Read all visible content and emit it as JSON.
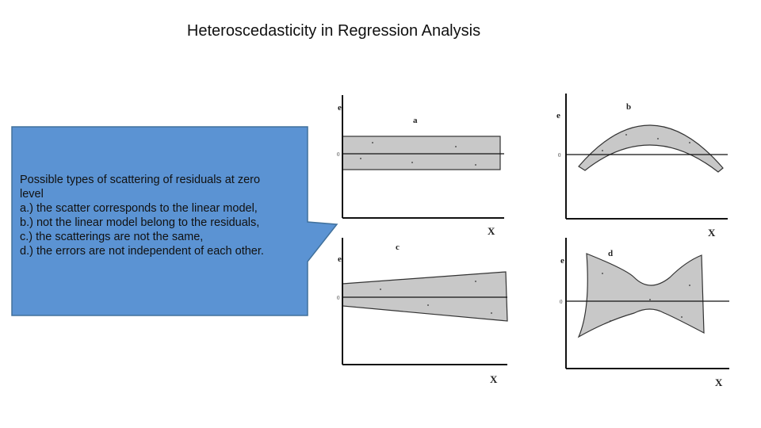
{
  "title": "Heteroscedasticity in Regression Analysis",
  "callout": {
    "lines": [
      "Possible types of scattering of residuals at zero",
      "level",
      "a.) the scatter corresponds to the linear model,",
      "b.) not the linear model belong to the residuals,",
      "c.) the scatterings are not the same,",
      "d.) the errors are not independent of each other."
    ]
  },
  "panels": [
    {
      "label": "a",
      "y_axis": "e",
      "x_axis": "X",
      "zero": "0"
    },
    {
      "label": "b",
      "y_axis": "e",
      "x_axis": "X",
      "zero": "0"
    },
    {
      "label": "c",
      "y_axis": "e",
      "x_axis": "X",
      "zero": "0"
    },
    {
      "label": "d",
      "y_axis": "e",
      "x_axis": "X",
      "zero": "0"
    }
  ]
}
